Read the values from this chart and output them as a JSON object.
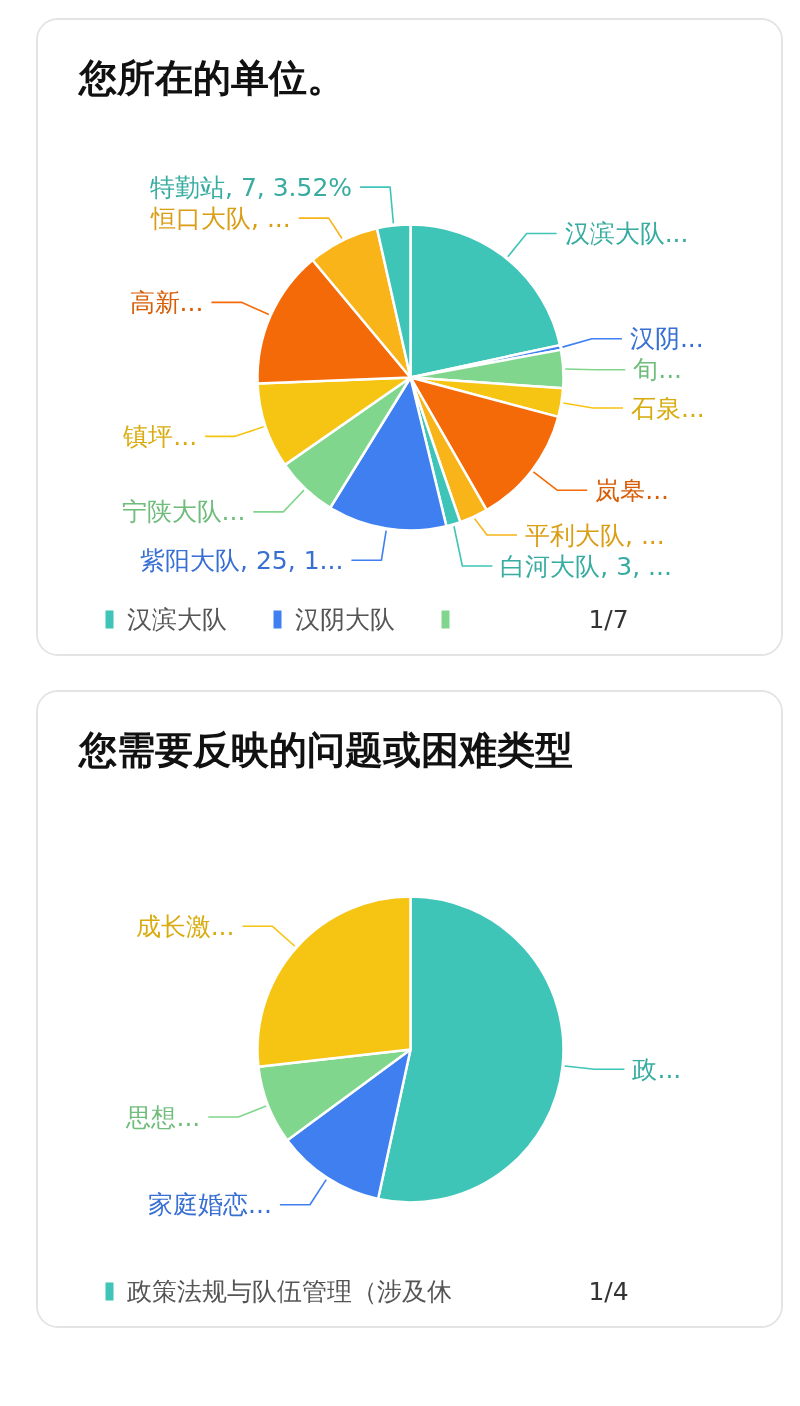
{
  "chart_data": [
    {
      "type": "pie",
      "title": "您所在的单位。",
      "categories": [
        "汉滨大队",
        "汉阴大队",
        null,
        null,
        null,
        null,
        null,
        null,
        null,
        null,
        null,
        null,
        null
      ],
      "values": [
        43,
        1,
        8,
        6,
        25,
        6,
        3,
        25,
        13,
        18,
        29,
        15,
        7
      ],
      "colors": [
        "#3fc4b8",
        "#3f7fef",
        "#80d68c",
        "#f6c413",
        "#f56a08",
        "#f8b418",
        "#3fc4b8",
        "#3f7fef",
        "#80d68c",
        "#f6c413",
        "#f56a08",
        "#f8b418",
        "#3fc4b8"
      ],
      "value_labels": [
        "汉滨大队...",
        "汉阴...",
        "旬...",
        "石泉...",
        "岚皋...",
        "平利大队, ...",
        "白河大队, 3, ...",
        "紫阳大队, 25, 1...",
        "宁陕大队...",
        "镇坪...",
        "高新...",
        "恒口大队, ...",
        "特勤站, 7, 3.52%"
      ],
      "legend": "bottom",
      "annotations": [
        "1/7"
      ]
    },
    {
      "type": "pie",
      "title": "您需要反映的问题或困难类型",
      "categories": [
        "政策法规与队伍管理（涉及休",
        null,
        null,
        null
      ],
      "values": [
        53.4,
        11.5,
        8.3,
        26.8
      ],
      "colors": [
        "#3fc4b8",
        "#3f7fef",
        "#80d68c",
        "#f6c413"
      ],
      "value_labels": [
        "政...",
        "家庭婚恋...",
        "思想...",
        "成长激..."
      ],
      "legend": "bottom",
      "annotations": [
        "1/4"
      ]
    }
  ]
}
